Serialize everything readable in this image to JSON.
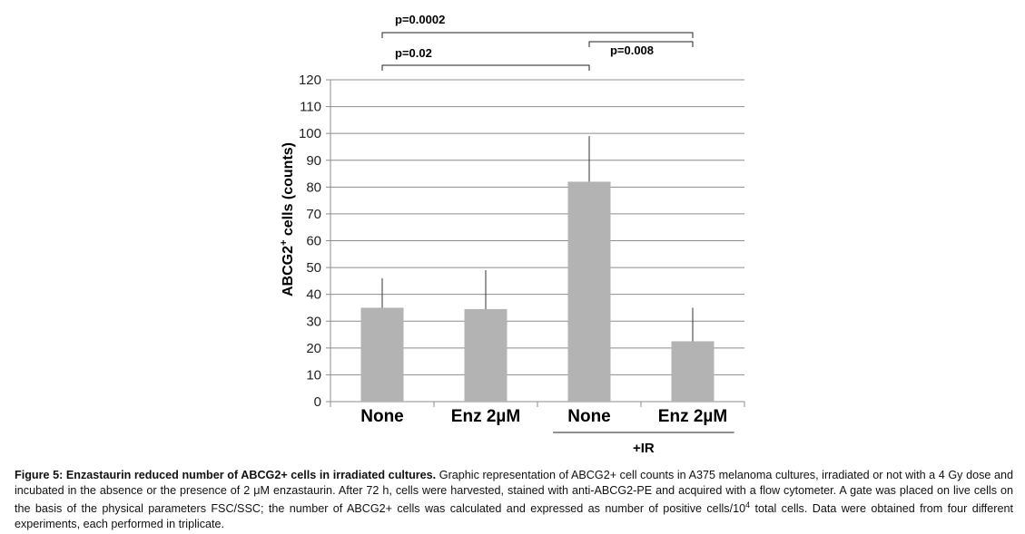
{
  "chart_data": {
    "type": "bar",
    "categories": [
      "None",
      "Enz 2µM",
      "None",
      "Enz 2µM"
    ],
    "values": [
      35,
      34.5,
      82,
      22.5
    ],
    "error_upper": [
      46,
      49,
      99,
      35
    ],
    "ylabel_main": "ABCG2",
    "ylabel_sup": "+",
    "ylabel_rest": " cells (counts)",
    "ylim": [
      0,
      120
    ],
    "yticks": [
      0,
      10,
      20,
      30,
      40,
      50,
      60,
      70,
      80,
      90,
      100,
      110,
      120
    ],
    "grid": true,
    "bar_color": "#b3b3b3",
    "group_label": "+IR",
    "group_categories": [
      2,
      3
    ],
    "significance": [
      {
        "from": 0,
        "to": 3,
        "label": "p=0.0002"
      },
      {
        "from": 0,
        "to": 2,
        "label": "p=0.02"
      },
      {
        "from": 2,
        "to": 3,
        "label": "p=0.008"
      }
    ]
  },
  "caption": {
    "bold": "Figure 5: Enzastaurin reduced number of ABCG2+ cells in irradiated cultures.",
    "body": " Graphic representation of ABCG2+ cell counts in A375 melanoma cultures, irradiated or not with a 4 Gy dose and incubated in the absence or the presence of 2 μM enzastaurin. After 72 h, cells were harvested, stained with anti-ABCG2-PE and acquired with a flow cytometer. A gate was placed on live cells on the basis of the physical parameters FSC/SSC; the number of ABCG2+ cells was calculated and expressed as number of positive cells/10",
    "sup": "4",
    "tail": " total cells. Data were obtained from four different experiments, each performed in triplicate."
  }
}
